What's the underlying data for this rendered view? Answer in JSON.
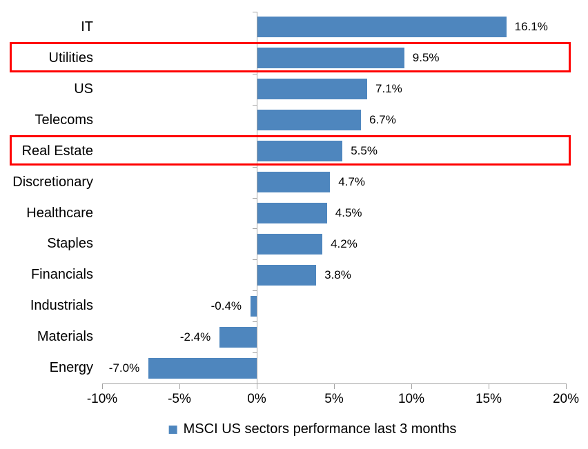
{
  "chart_data": {
    "type": "bar",
    "orientation": "horizontal",
    "title": "",
    "xlabel": "",
    "ylabel": "",
    "xlim": [
      -10,
      20
    ],
    "grid": false,
    "legend_position": "bottom",
    "legend": "MSCI US sectors performance last 3 months",
    "categories": [
      "IT",
      "Utilities",
      "US",
      "Telecoms",
      "Real Estate",
      "Discretionary",
      "Healthcare",
      "Staples",
      "Financials",
      "Industrials",
      "Materials",
      "Energy"
    ],
    "values": [
      16.1,
      9.5,
      7.1,
      6.7,
      5.5,
      4.7,
      4.5,
      4.2,
      3.8,
      -0.4,
      -2.4,
      -7.0
    ],
    "value_labels": [
      "16.1%",
      "9.5%",
      "7.1%",
      "6.7%",
      "5.5%",
      "4.7%",
      "4.5%",
      "4.2%",
      "3.8%",
      "-0.4%",
      "-2.4%",
      "-7.0%"
    ],
    "highlighted_categories": [
      "Utilities",
      "Real Estate"
    ],
    "x_ticks": [
      {
        "value": -10,
        "label": "-10%"
      },
      {
        "value": -5,
        "label": "-5%"
      },
      {
        "value": 0,
        "label": "0%"
      },
      {
        "value": 5,
        "label": "5%"
      },
      {
        "value": 10,
        "label": "10%"
      },
      {
        "value": 15,
        "label": "15%"
      },
      {
        "value": 20,
        "label": "20%"
      }
    ],
    "colors": {
      "bar": "#4E86BE",
      "highlight_border": "#FF0000",
      "axis": "#A3A3A3",
      "text": "#000000"
    }
  }
}
